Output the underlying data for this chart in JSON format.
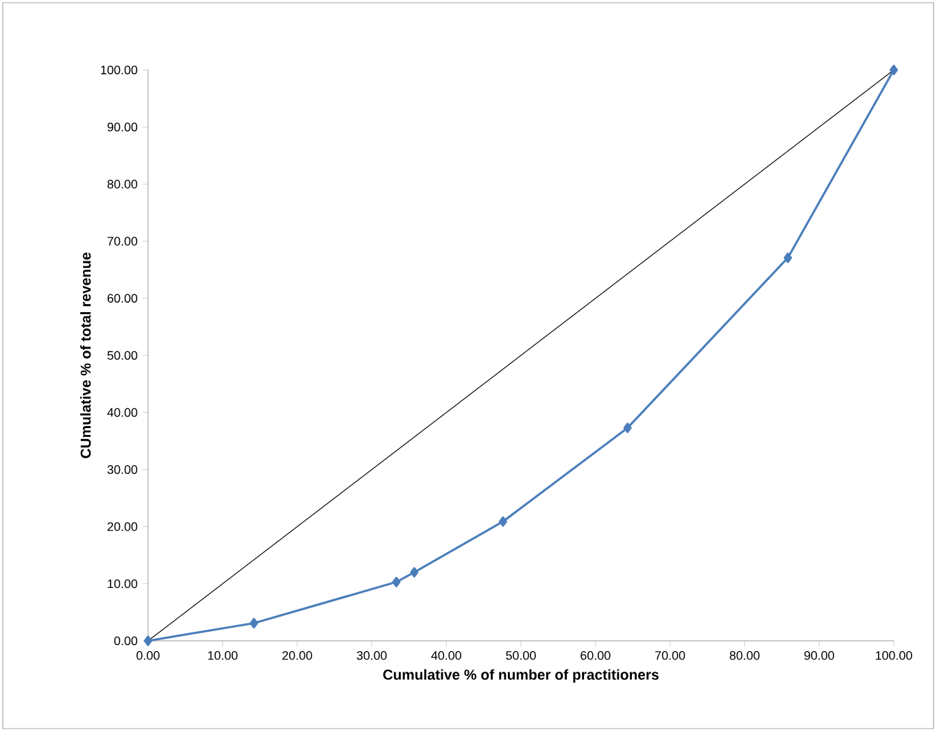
{
  "chart_data": {
    "type": "line",
    "xlabel": "Cumulative % of number of practitioners",
    "ylabel": "CUmulative % of total revenue",
    "xlim": [
      0,
      100
    ],
    "ylim": [
      0,
      100
    ],
    "xticks": [
      {
        "value": 0,
        "label": "0.00"
      },
      {
        "value": 10,
        "label": "10.00"
      },
      {
        "value": 20,
        "label": "20.00"
      },
      {
        "value": 30,
        "label": "30.00"
      },
      {
        "value": 40,
        "label": "40.00"
      },
      {
        "value": 50,
        "label": "50.00"
      },
      {
        "value": 60,
        "label": "60.00"
      },
      {
        "value": 70,
        "label": "70.00"
      },
      {
        "value": 80,
        "label": "80.00"
      },
      {
        "value": 90,
        "label": "90.00"
      },
      {
        "value": 100,
        "label": "100.00"
      }
    ],
    "yticks": [
      {
        "value": 0,
        "label": "0.00"
      },
      {
        "value": 10,
        "label": "10.00"
      },
      {
        "value": 20,
        "label": "20.00"
      },
      {
        "value": 30,
        "label": "30.00"
      },
      {
        "value": 40,
        "label": "40.00"
      },
      {
        "value": 50,
        "label": "50.00"
      },
      {
        "value": 60,
        "label": "60.00"
      },
      {
        "value": 70,
        "label": "70.00"
      },
      {
        "value": 80,
        "label": "80.00"
      },
      {
        "value": 90,
        "label": "90.00"
      },
      {
        "value": 100,
        "label": "100.00"
      }
    ],
    "series": [
      {
        "x": [
          0,
          14.2,
          33.3,
          35.7,
          47.6,
          64.3,
          85.8,
          100
        ],
        "values": [
          0,
          3.1,
          10.3,
          12.0,
          20.9,
          37.3,
          67.1,
          100
        ],
        "color": "#4a7ebb",
        "marker": "diamond",
        "line_style": "solid"
      },
      {
        "x": [
          0,
          100
        ],
        "values": [
          0,
          100
        ],
        "color": "#000000",
        "marker": "none",
        "line_style": "solid"
      }
    ]
  }
}
